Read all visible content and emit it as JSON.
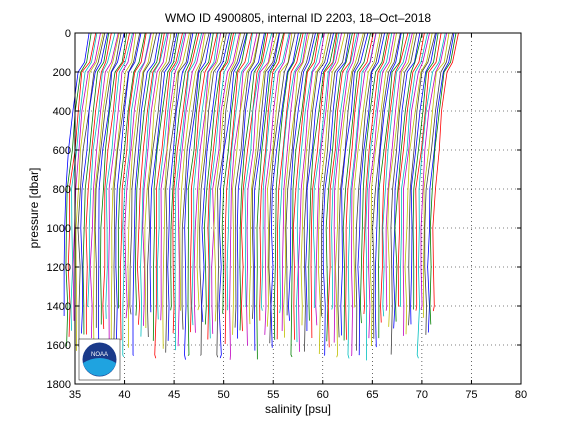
{
  "chart_data": {
    "type": "line",
    "title": "WMO ID 4900805, internal ID 2203, 18–Oct–2018",
    "xlabel": "salinity [psu]",
    "ylabel": "pressure [dbar]",
    "xlim": [
      35,
      80
    ],
    "ylim": [
      1800,
      0
    ],
    "y_inverted": true,
    "grid": true,
    "grid_style": "dotted",
    "xticks": [
      "35",
      "40",
      "45",
      "50",
      "55",
      "60",
      "65",
      "70",
      "75",
      "80"
    ],
    "yticks": [
      "0",
      "200",
      "400",
      "600",
      "800",
      "1000",
      "1200",
      "1400",
      "1600",
      "1800"
    ],
    "profiles": {
      "description_offset_per_profile_psu": 0.25,
      "count": 150,
      "first_profile_surface_salinity": 36.5,
      "base_profile_shape": [
        {
          "p": 0,
          "s": 0.0
        },
        {
          "p": 150,
          "s": -0.6
        },
        {
          "p": 200,
          "s": -1.2
        },
        {
          "p": 400,
          "s": -1.7
        },
        {
          "p": 600,
          "s": -2.1
        },
        {
          "p": 800,
          "s": -2.5
        },
        {
          "p": 1000,
          "s": -2.6
        },
        {
          "p": 1200,
          "s": -2.6
        },
        {
          "p": 1400,
          "s": -2.6
        },
        {
          "p": 1650,
          "s": -2.6
        }
      ]
    },
    "series_colors": [
      "#0000ff",
      "#008000",
      "#ff0000",
      "#00bfbf",
      "#bf00bf",
      "#bfbf00",
      "#404040"
    ],
    "logo": "noaa-logo",
    "logo_text": "NOAA"
  }
}
